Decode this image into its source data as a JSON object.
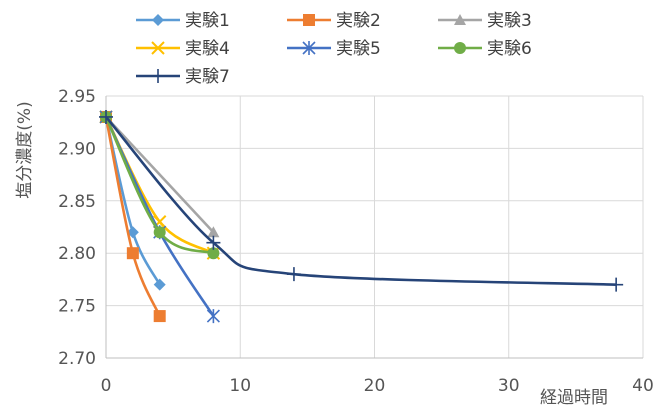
{
  "chart_data": {
    "type": "scatter",
    "title": "",
    "xlabel": "経過時間",
    "ylabel": "塩分濃度(%)",
    "xlim": [
      0,
      40
    ],
    "ylim": [
      2.7,
      2.95
    ],
    "x_ticks": [
      "0",
      "10",
      "20",
      "30",
      "40"
    ],
    "y_ticks": [
      "2.95",
      "2.90",
      "2.85",
      "2.80",
      "2.75",
      "2.70"
    ],
    "grid": true,
    "legend_position": "top",
    "series": [
      {
        "name": "実験1",
        "color": "#5B9BD5",
        "marker": "diamond",
        "points": [
          [
            0,
            2.93
          ],
          [
            2,
            2.82
          ],
          [
            4,
            2.77
          ]
        ]
      },
      {
        "name": "実験2",
        "color": "#ED7D31",
        "marker": "square",
        "points": [
          [
            0,
            2.93
          ],
          [
            2,
            2.8
          ],
          [
            4,
            2.74
          ]
        ]
      },
      {
        "name": "実験3",
        "color": "#A5A5A5",
        "marker": "triangle",
        "points": [
          [
            0,
            2.93
          ],
          [
            8,
            2.82
          ]
        ]
      },
      {
        "name": "実験4",
        "color": "#FFC000",
        "marker": "x",
        "points": [
          [
            0,
            2.93
          ],
          [
            4,
            2.83
          ],
          [
            8,
            2.8
          ]
        ]
      },
      {
        "name": "実験5",
        "color": "#4472C4",
        "marker": "star",
        "points": [
          [
            0,
            2.93
          ],
          [
            4,
            2.82
          ],
          [
            8,
            2.74
          ]
        ]
      },
      {
        "name": "実験6",
        "color": "#70AD47",
        "marker": "circle",
        "points": [
          [
            0,
            2.93
          ],
          [
            4,
            2.82
          ],
          [
            8,
            2.8
          ]
        ]
      },
      {
        "name": "実験7",
        "color": "#264478",
        "marker": "plus",
        "points": [
          [
            0,
            2.93
          ],
          [
            8,
            2.81
          ],
          [
            14,
            2.78
          ],
          [
            38,
            2.77
          ]
        ]
      }
    ]
  }
}
